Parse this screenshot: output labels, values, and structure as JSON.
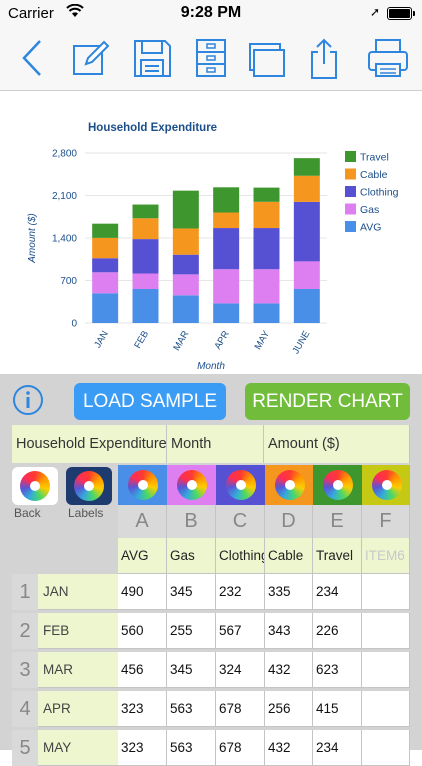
{
  "status": {
    "carrier": "Carrier",
    "time": "9:28 PM"
  },
  "toolbar": {
    "icons": [
      "back-chevron-icon",
      "edit-icon",
      "save-disk-icon",
      "cabinet-icon",
      "windows-icon",
      "share-icon",
      "print-icon"
    ],
    "accent": "#2e86de"
  },
  "chart_data": {
    "type": "bar",
    "stacked": true,
    "title": "Household Expenditure",
    "xlabel": "Month",
    "ylabel": "Amount ($)",
    "ylim": [
      0,
      2800
    ],
    "yticks": [
      "0",
      "700",
      "1,400",
      "2,100",
      "2,800"
    ],
    "categories": [
      "JAN",
      "FEB",
      "MAR",
      "APR",
      "MAY",
      "JUNE"
    ],
    "series": [
      {
        "name": "AVG",
        "color": "#4a8fe7",
        "values": [
          490,
          560,
          456,
          323,
          323,
          560
        ]
      },
      {
        "name": "Gas",
        "color": "#dd7ff0",
        "values": [
          345,
          255,
          345,
          563,
          563,
          455
        ]
      },
      {
        "name": "Clothing",
        "color": "#5650d3",
        "values": [
          232,
          567,
          324,
          678,
          678,
          980
        ]
      },
      {
        "name": "Cable",
        "color": "#f5961f",
        "values": [
          335,
          343,
          432,
          256,
          432,
          430
        ]
      },
      {
        "name": "Travel",
        "color": "#3e962f",
        "values": [
          234,
          226,
          623,
          415,
          234,
          290
        ]
      }
    ],
    "legend_position": "right"
  },
  "panel": {
    "load_label": "LOAD SAMPLE",
    "render_label": "RENDER CHART",
    "title_cell": "Household Expenditure",
    "x_cell": "Month",
    "y_cell": "Amount ($)",
    "back_label": "Back",
    "labels_label": "Labels",
    "column_letters": [
      "A",
      "B",
      "C",
      "D",
      "E",
      "F"
    ],
    "column_colors": [
      "#4a8fe7",
      "#dd7ff0",
      "#5650d3",
      "#f5961f",
      "#3e962f",
      "#c6c914"
    ],
    "series_names": [
      "AVG",
      "Gas",
      "Clothing",
      "Cable",
      "Travel",
      "ITEM6"
    ],
    "rows": [
      {
        "num": "1",
        "month": "JAN",
        "values": [
          "490",
          "345",
          "232",
          "335",
          "234",
          ""
        ]
      },
      {
        "num": "2",
        "month": "FEB",
        "values": [
          "560",
          "255",
          "567",
          "343",
          "226",
          ""
        ]
      },
      {
        "num": "3",
        "month": "MAR",
        "values": [
          "456",
          "345",
          "324",
          "432",
          "623",
          ""
        ]
      },
      {
        "num": "4",
        "month": "APR",
        "values": [
          "323",
          "563",
          "678",
          "256",
          "415",
          ""
        ]
      },
      {
        "num": "5",
        "month": "MAY",
        "values": [
          "323",
          "563",
          "678",
          "432",
          "234",
          ""
        ]
      }
    ]
  }
}
